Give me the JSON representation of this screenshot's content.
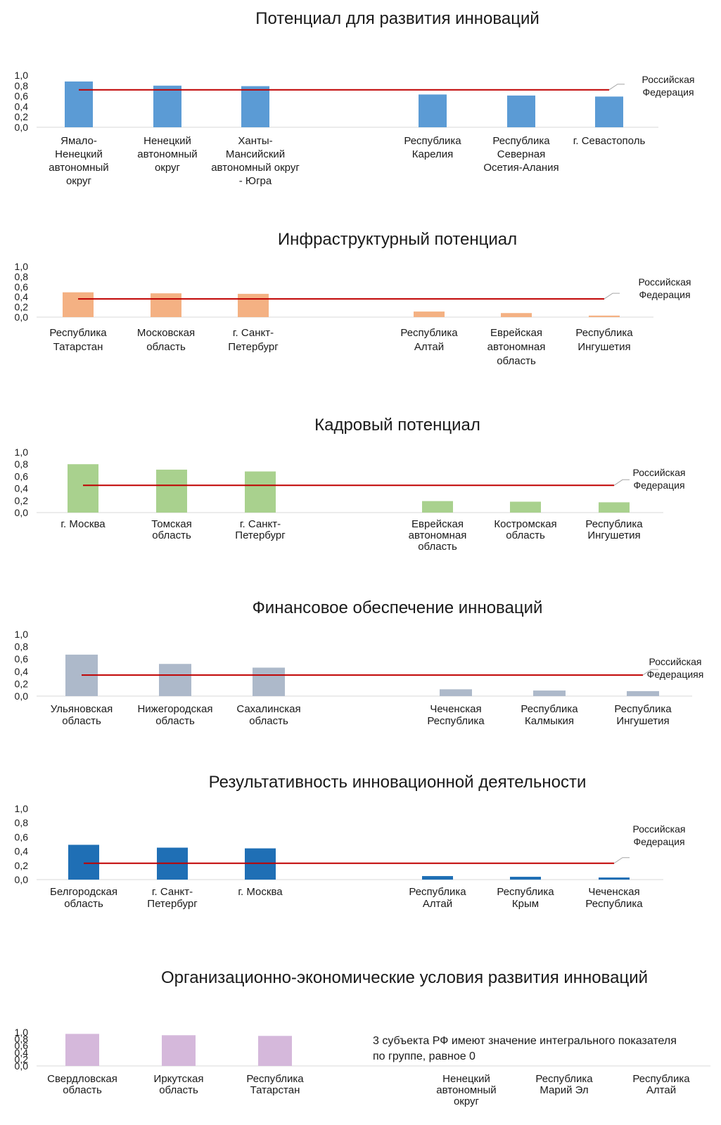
{
  "chart_data": [
    {
      "type": "bar",
      "title": "Потенциал для развития инноваций",
      "color": "#5b9bd5",
      "ylim": [
        0,
        1.0
      ],
      "yticks": [
        "1,0",
        "0,8",
        "0,6",
        "0,4",
        "0,2",
        "0,0"
      ],
      "categories": [
        [
          "Ямало-",
          "Ненецкий",
          "автономный",
          "округ"
        ],
        [
          "Ненецкий",
          "автономный",
          "округ"
        ],
        [
          "Ханты-",
          "Мансийский",
          "автономный округ",
          "- Югра"
        ],
        [
          "Республика",
          "Карелия"
        ],
        [
          "Республика",
          "Северная",
          "Осетия-Алания"
        ],
        [
          "г. Севастополь"
        ]
      ],
      "values": [
        0.88,
        0.8,
        0.79,
        0.63,
        0.61,
        0.59
      ],
      "reference": {
        "value": 0.72,
        "label": [
          "Российская",
          "Федерация"
        ],
        "color": "#c00000"
      }
    },
    {
      "type": "bar",
      "title": "Инфраструктурный потенциал",
      "color": "#f4b183",
      "ylim": [
        0,
        1.0
      ],
      "yticks": [
        "1,0",
        "0,8",
        "0,6",
        "0,4",
        "0,2",
        "0,0"
      ],
      "categories": [
        [
          "Республика",
          "Татарстан"
        ],
        [
          "Московская",
          "область"
        ],
        [
          "г. Санкт-",
          "Петербург"
        ],
        [
          "Республика",
          "Алтай"
        ],
        [
          "Еврейская",
          "автономная",
          "область"
        ],
        [
          "Республика",
          "Ингушетия"
        ]
      ],
      "values": [
        0.49,
        0.47,
        0.46,
        0.11,
        0.08,
        0.03
      ],
      "reference": {
        "value": 0.36,
        "label": [
          "Российская",
          "Федерация"
        ],
        "color": "#c00000"
      }
    },
    {
      "type": "bar",
      "title": "Кадровый потенциал",
      "color": "#a9d18e",
      "ylim": [
        0,
        1.0
      ],
      "yticks": [
        "1,0",
        "0,8",
        "0,6",
        "0,4",
        "0,2",
        "0,0"
      ],
      "categories": [
        [
          "г. Москва"
        ],
        [
          "Томская",
          "область"
        ],
        [
          "г. Санкт-",
          "Петербург"
        ],
        [
          "Еврейская",
          "автономная",
          "область"
        ],
        [
          "Костромская",
          "область"
        ],
        [
          "Республика",
          "Ингушетия"
        ]
      ],
      "values": [
        0.8,
        0.71,
        0.68,
        0.19,
        0.18,
        0.17
      ],
      "reference": {
        "value": 0.45,
        "label": [
          "Российская",
          "Федерация"
        ],
        "color": "#c00000"
      }
    },
    {
      "type": "bar",
      "title": "Финансовое обеспечение инноваций",
      "color": "#adb9ca",
      "ylim": [
        0,
        1.0
      ],
      "yticks": [
        "1,0",
        "0,8",
        "0,6",
        "0,4",
        "0,2",
        "0,0"
      ],
      "categories": [
        [
          "Ульяновская",
          "область"
        ],
        [
          "Нижегородская",
          "область"
        ],
        [
          "Сахалинская",
          "область"
        ],
        [
          "Чеченская",
          "Республика"
        ],
        [
          "Республика",
          "Калмыкия"
        ],
        [
          "Республика",
          "Ингушетия"
        ]
      ],
      "values": [
        0.67,
        0.52,
        0.46,
        0.11,
        0.09,
        0.08
      ],
      "reference": {
        "value": 0.34,
        "label": [
          "Российская",
          "Федерацияя"
        ],
        "color": "#c00000"
      }
    },
    {
      "type": "bar",
      "title": "Результативность инновационной деятельности",
      "color": "#1f6fb5",
      "ylim": [
        0,
        1.0
      ],
      "yticks": [
        "1,0",
        "0,8",
        "0,6",
        "0,4",
        "0,2",
        "0,0"
      ],
      "categories": [
        [
          "Белгородская",
          "область"
        ],
        [
          "г. Санкт-",
          "Петербург"
        ],
        [
          "г. Москва"
        ],
        [
          "Республика",
          "Алтай"
        ],
        [
          "Республика",
          "Крым"
        ],
        [
          "Чеченская",
          "Республика"
        ]
      ],
      "values": [
        0.49,
        0.45,
        0.44,
        0.05,
        0.04,
        0.03
      ],
      "reference": {
        "value": 0.23,
        "label": [
          "Российская",
          "Федерация"
        ],
        "color": "#c00000"
      }
    },
    {
      "type": "bar",
      "title": "Организационно-экономические условия развития инноваций",
      "color": "#d5b8db",
      "ylim": [
        0,
        1.0
      ],
      "yticks": [
        "1,0",
        "0,8",
        "0,6",
        "0,4",
        "0,2",
        "0,0"
      ],
      "categories": [
        [
          "Свердловская",
          "область"
        ],
        [
          "Иркутская",
          "область"
        ],
        [
          "Республика",
          "Татарстан"
        ],
        [
          "Ненецкий",
          "автономный",
          "округ"
        ],
        [
          "Республика",
          "Марий Эл"
        ],
        [
          "Республика",
          "Алтай"
        ]
      ],
      "values": [
        0.95,
        0.91,
        0.89,
        0,
        0,
        0
      ],
      "annotation": [
        "3 субъекта РФ имеют значение интегрального показателя",
        "по группе, равное 0"
      ]
    }
  ]
}
